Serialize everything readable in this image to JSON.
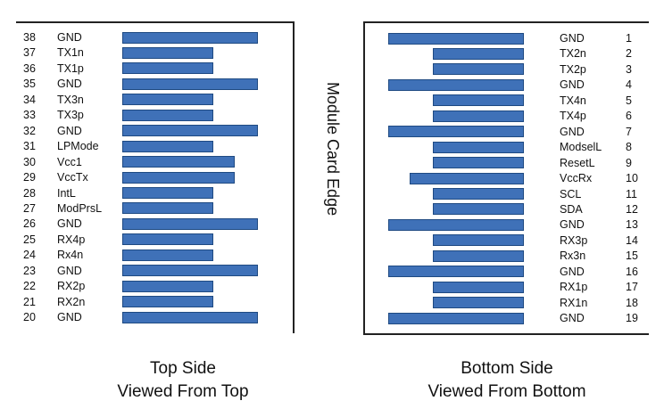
{
  "edge_label": "Module Card Edge",
  "top_side": {
    "caption_line1": "Top Side",
    "caption_line2": "Viewed From Top",
    "pins": [
      {
        "num": "38",
        "name": "GND"
      },
      {
        "num": "37",
        "name": "TX1n"
      },
      {
        "num": "36",
        "name": "TX1p"
      },
      {
        "num": "35",
        "name": "GND"
      },
      {
        "num": "34",
        "name": "TX3n"
      },
      {
        "num": "33",
        "name": "TX3p"
      },
      {
        "num": "32",
        "name": "GND"
      },
      {
        "num": "31",
        "name": "LPMode"
      },
      {
        "num": "30",
        "name": "Vcc1"
      },
      {
        "num": "29",
        "name": "VccTx"
      },
      {
        "num": "28",
        "name": "IntL"
      },
      {
        "num": "27",
        "name": "ModPrsL"
      },
      {
        "num": "26",
        "name": "GND"
      },
      {
        "num": "25",
        "name": "RX4p"
      },
      {
        "num": "24",
        "name": "Rx4n"
      },
      {
        "num": "23",
        "name": "GND"
      },
      {
        "num": "22",
        "name": "RX2p"
      },
      {
        "num": "21",
        "name": "RX2n"
      },
      {
        "num": "20",
        "name": "GND"
      }
    ]
  },
  "bottom_side": {
    "caption_line1": "Bottom Side",
    "caption_line2": "Viewed From Bottom",
    "pins": [
      {
        "num": "1",
        "name": "GND"
      },
      {
        "num": "2",
        "name": "TX2n"
      },
      {
        "num": "3",
        "name": "TX2p"
      },
      {
        "num": "4",
        "name": "GND"
      },
      {
        "num": "5",
        "name": "TX4n"
      },
      {
        "num": "6",
        "name": "TX4p"
      },
      {
        "num": "7",
        "name": "GND"
      },
      {
        "num": "8",
        "name": "ModselL"
      },
      {
        "num": "9",
        "name": "ResetL"
      },
      {
        "num": "10",
        "name": "VccRx"
      },
      {
        "num": "11",
        "name": "SCL"
      },
      {
        "num": "12",
        "name": "SDA"
      },
      {
        "num": "13",
        "name": "GND"
      },
      {
        "num": "14",
        "name": "RX3p"
      },
      {
        "num": "15",
        "name": "Rx3n"
      },
      {
        "num": "16",
        "name": "GND"
      },
      {
        "num": "17",
        "name": "RX1p"
      },
      {
        "num": "18",
        "name": "RX1n"
      },
      {
        "num": "19",
        "name": "GND"
      }
    ]
  },
  "colors": {
    "pad_fill": "#3f71b8",
    "pad_border": "#1f4a82",
    "line": "#222222"
  }
}
